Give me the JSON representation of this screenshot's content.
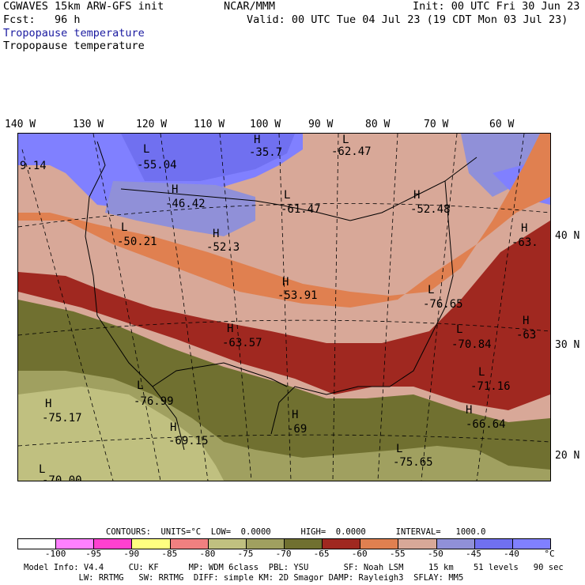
{
  "header": {
    "model": "CGWAVES 15km ARW-GFS init",
    "fcst": "Fcst:   96 h",
    "org": "NCAR/MMM",
    "init": "Init: 00 UTC Fri 30 Jun 23",
    "valid": "Valid: 00 UTC Tue 04 Jul 23 (19 CDT Mon 03 Jul 23)",
    "field1": "Tropopause temperature",
    "field2": "Tropopause temperature"
  },
  "longitudes": [
    "140 W",
    "130 W",
    "120 W",
    "110 W",
    "100 W",
    "90 W",
    "80 W",
    "70 W",
    "60 W"
  ],
  "latitudes": [
    "40 N",
    "30 N",
    "20 N"
  ],
  "map_labels": [
    {
      "text": "9.14"
    },
    {
      "text": "L"
    },
    {
      "text": "-55.04"
    },
    {
      "text": "H"
    },
    {
      "text": "-35.7"
    },
    {
      "text": "L"
    },
    {
      "text": "-62.47"
    },
    {
      "text": "H"
    },
    {
      "text": "-46.42"
    },
    {
      "text": "H"
    },
    {
      "text": "-52.48"
    },
    {
      "text": "L"
    },
    {
      "text": "-61.47"
    },
    {
      "text": "L"
    },
    {
      "text": "-50.21"
    },
    {
      "text": "H"
    },
    {
      "text": "-52.3"
    },
    {
      "text": "H"
    },
    {
      "text": "-63."
    },
    {
      "text": "H"
    },
    {
      "text": "-53.91"
    },
    {
      "text": "L"
    },
    {
      "text": "-76.65"
    },
    {
      "text": "H"
    },
    {
      "text": "-63.57"
    },
    {
      "text": "L"
    },
    {
      "text": "-70.84"
    },
    {
      "text": "H"
    },
    {
      "text": "-63"
    },
    {
      "text": "L"
    },
    {
      "text": "-71.16"
    },
    {
      "text": "L"
    },
    {
      "text": "-76.99"
    },
    {
      "text": "H"
    },
    {
      "text": "-75.17"
    },
    {
      "text": "H"
    },
    {
      "text": "-69"
    },
    {
      "text": "H"
    },
    {
      "text": "-66.64"
    },
    {
      "text": "H"
    },
    {
      "text": "-69.15"
    },
    {
      "text": "L"
    },
    {
      "text": "-75.65"
    },
    {
      "text": "L"
    },
    {
      "text": "-70.00"
    }
  ],
  "contours": "CONTOURS:  UNITS=°C  LOW=  0.0000      HIGH=  0.0000      INTERVAL=   1000.0",
  "colorbar": {
    "colors": [
      "#ffffff",
      "#ff80ff",
      "#ff40d0",
      "#ffff80",
      "#f08080",
      "#c0c080",
      "#a0a060",
      "#707030",
      "#a02820",
      "#e08050",
      "#d8a898",
      "#9090d8",
      "#7070f0",
      "#8080ff"
    ],
    "labels": [
      "-100",
      "-95",
      "-90",
      "-85",
      "-80",
      "-75",
      "-70",
      "-65",
      "-60",
      "-55",
      "-50",
      "-45",
      "-40",
      "°C"
    ]
  },
  "footer": {
    "line1": "Model Info: V4.4     CU: KF      MP: WDM 6class  PBL: YSU       SF: Noah LSM     15 km    51 levels   90 sec",
    "line2": "           LW: RRTMG   SW: RRTMG  DIFF: simple KM: 2D Smagor DAMP: Rayleigh3  SFLAY: MM5"
  }
}
